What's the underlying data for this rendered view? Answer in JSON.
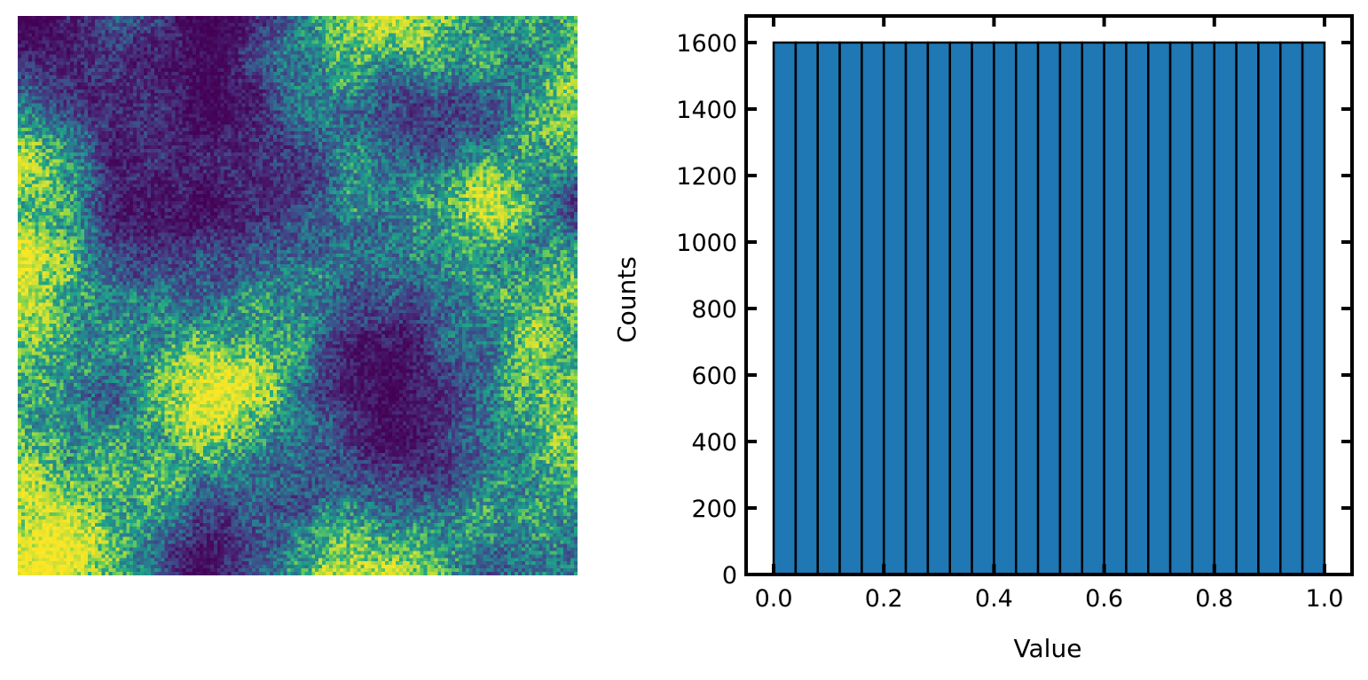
{
  "chart_data": [
    {
      "type": "heatmap",
      "colormap": "viridis",
      "axes": "off",
      "description_values": "continuous random field, values normalized 0 to 1"
    },
    {
      "type": "bar",
      "xlabel": "Value",
      "ylabel": "Counts",
      "xlim": [
        -0.05,
        1.05
      ],
      "ylim": [
        0,
        1680
      ],
      "bin_edges": [
        0.0,
        0.04,
        0.08,
        0.12,
        0.16,
        0.2,
        0.24,
        0.28,
        0.32,
        0.36,
        0.4,
        0.44,
        0.48,
        0.52,
        0.56,
        0.6,
        0.64,
        0.68,
        0.72,
        0.76,
        0.8,
        0.84,
        0.88,
        0.92,
        0.96,
        1.0
      ],
      "values": [
        1600,
        1600,
        1600,
        1600,
        1600,
        1600,
        1600,
        1600,
        1600,
        1600,
        1600,
        1600,
        1600,
        1600,
        1600,
        1600,
        1600,
        1600,
        1600,
        1600,
        1600,
        1600,
        1600,
        1600,
        1600
      ],
      "xticks": [
        "0.0",
        "0.2",
        "0.4",
        "0.6",
        "0.8",
        "1.0"
      ],
      "xtick_values": [
        0.0,
        0.2,
        0.4,
        0.6,
        0.8,
        1.0
      ],
      "yticks": [
        "0",
        "200",
        "400",
        "600",
        "800",
        "1000",
        "1200",
        "1400",
        "1600"
      ],
      "ytick_values": [
        0,
        200,
        400,
        600,
        800,
        1000,
        1200,
        1400,
        1600
      ],
      "bar_color": "#1f77b4",
      "edge_color": "#000000",
      "grid": false
    }
  ]
}
